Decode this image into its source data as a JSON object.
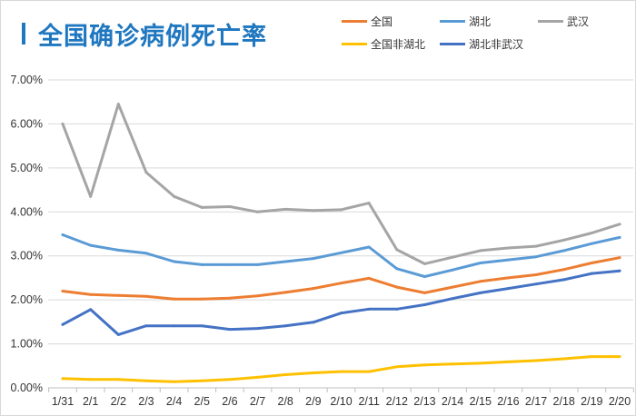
{
  "chart_data": {
    "type": "line",
    "title": "全国确诊病例死亡率",
    "xlabel": "",
    "ylabel": "",
    "ylim": [
      0,
      7
    ],
    "y_ticks": [
      "0.00%",
      "1.00%",
      "2.00%",
      "3.00%",
      "4.00%",
      "5.00%",
      "6.00%",
      "7.00%"
    ],
    "grid": true,
    "legend_position": "top-right",
    "categories": [
      "1/31",
      "2/1",
      "2/2",
      "2/3",
      "2/4",
      "2/5",
      "2/6",
      "2/7",
      "2/8",
      "2/9",
      "2/10",
      "2/11",
      "2/12",
      "2/13",
      "2/14",
      "2/15",
      "2/16",
      "2/17",
      "2/18",
      "2/19",
      "2/20"
    ],
    "series": [
      {
        "name": "全国",
        "color": "#ED7D31",
        "values": [
          2.2,
          2.12,
          2.1,
          2.08,
          2.02,
          2.02,
          2.04,
          2.09,
          2.17,
          2.26,
          2.38,
          2.49,
          2.29,
          2.16,
          2.29,
          2.42,
          2.5,
          2.57,
          2.69,
          2.84,
          2.96
        ]
      },
      {
        "name": "湖北",
        "color": "#5B9BD5",
        "values": [
          3.48,
          3.24,
          3.13,
          3.06,
          2.87,
          2.8,
          2.8,
          2.8,
          2.87,
          2.94,
          3.07,
          3.2,
          2.71,
          2.53,
          2.68,
          2.84,
          2.91,
          2.98,
          3.12,
          3.28,
          3.42
        ]
      },
      {
        "name": "武汉",
        "color": "#A5A5A5",
        "values": [
          6.0,
          4.35,
          6.45,
          4.9,
          4.35,
          4.1,
          4.12,
          4.0,
          4.06,
          4.03,
          4.05,
          4.2,
          3.14,
          2.82,
          2.97,
          3.12,
          3.18,
          3.22,
          3.36,
          3.52,
          3.72
        ]
      },
      {
        "name": "全国非湖北",
        "color": "#FFC000",
        "values": [
          0.21,
          0.19,
          0.19,
          0.16,
          0.14,
          0.16,
          0.19,
          0.24,
          0.3,
          0.34,
          0.37,
          0.37,
          0.48,
          0.52,
          0.54,
          0.56,
          0.59,
          0.62,
          0.66,
          0.71,
          0.71
        ]
      },
      {
        "name": "湖北非武汉",
        "color": "#4472C4",
        "values": [
          1.44,
          1.78,
          1.21,
          1.41,
          1.41,
          1.41,
          1.33,
          1.35,
          1.41,
          1.49,
          1.7,
          1.79,
          1.79,
          1.89,
          2.03,
          2.16,
          2.26,
          2.36,
          2.46,
          2.6,
          2.66
        ]
      }
    ]
  }
}
